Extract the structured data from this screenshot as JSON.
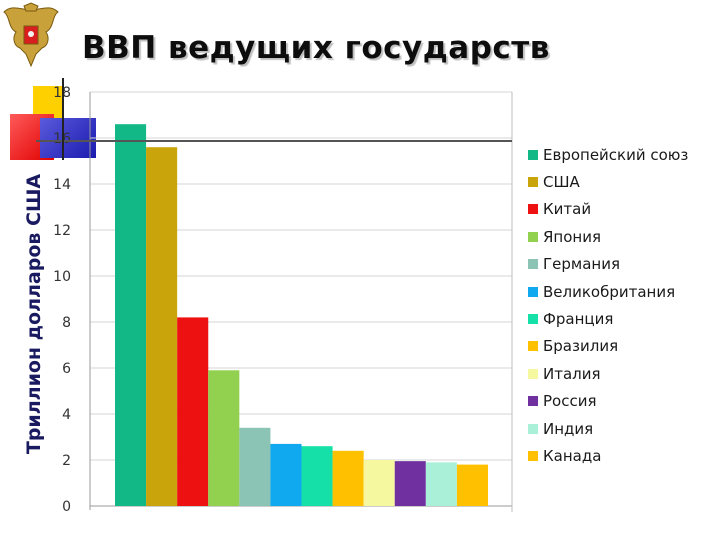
{
  "slide": {
    "title": "ВВП ведущих государств"
  },
  "emblem": {
    "icon": "coat-of-arms-icon"
  },
  "chart_data": {
    "type": "bar",
    "title": "",
    "xlabel": "",
    "ylabel": "Триллион долларов США",
    "ylim": [
      0,
      18
    ],
    "yticks": [
      0,
      2,
      4,
      6,
      8,
      10,
      12,
      14,
      16,
      18
    ],
    "grid": true,
    "legend_position": "right",
    "series": [
      {
        "name": "Европейский союз",
        "value": 16.6,
        "color": "#12b886"
      },
      {
        "name": "США",
        "value": 15.6,
        "color": "#c9a40a"
      },
      {
        "name": "Китай",
        "value": 8.2,
        "color": "#ee1111"
      },
      {
        "name": "Япония",
        "value": 5.9,
        "color": "#92d050"
      },
      {
        "name": "Германия",
        "value": 3.4,
        "color": "#8bc4b4"
      },
      {
        "name": "Великобритания",
        "value": 2.7,
        "color": "#10a8ee"
      },
      {
        "name": "Франция",
        "value": 2.6,
        "color": "#14e0a8"
      },
      {
        "name": "Бразилия",
        "value": 2.4,
        "color": "#ffc000"
      },
      {
        "name": "Италия",
        "value": 2.0,
        "color": "#f6f8a0"
      },
      {
        "name": "Россия",
        "value": 1.95,
        "color": "#7030a0"
      },
      {
        "name": "Индия",
        "value": 1.9,
        "color": "#aaf0d8"
      },
      {
        "name": "Канада",
        "value": 1.8,
        "color": "#ffc000"
      }
    ]
  }
}
